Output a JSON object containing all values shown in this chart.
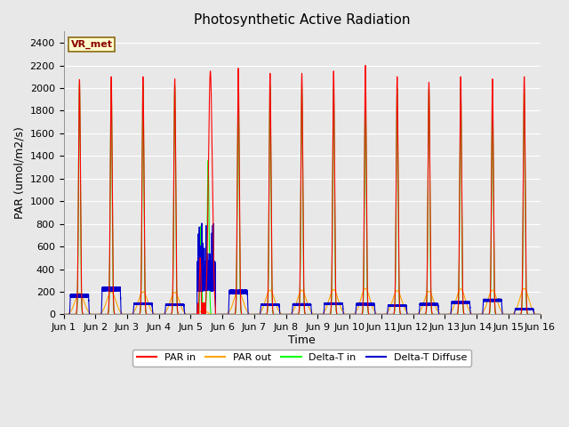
{
  "title": "Photosynthetic Active Radiation",
  "ylabel": "PAR (umol/m2/s)",
  "xlabel": "Time",
  "xlim": [
    0,
    15
  ],
  "ylim": [
    0,
    2500
  ],
  "yticks": [
    0,
    200,
    400,
    600,
    800,
    1000,
    1200,
    1400,
    1600,
    1800,
    2000,
    2200,
    2400
  ],
  "xtick_labels": [
    "Jun 1",
    "Jun 2",
    "Jun 3",
    "Jun 4",
    "Jun 5",
    "Jun 6",
    "Jun 7",
    "Jun 8",
    "Jun 9",
    "Jun 10",
    "Jun 11",
    "Jun 12",
    "Jun 13",
    "Jun 14",
    "Jun 15",
    "Jun 16"
  ],
  "xtick_positions": [
    0,
    1,
    2,
    3,
    4,
    5,
    6,
    7,
    8,
    9,
    10,
    11,
    12,
    13,
    14,
    15
  ],
  "annotation_text": "VR_met",
  "colors": {
    "PAR_in": "#ff0000",
    "PAR_out": "#ffa500",
    "Delta_T_in": "#00ff00",
    "Delta_T_Diffuse": "#0000cd"
  },
  "background_color": "#e8e8e8",
  "grid_color": "#ffffff",
  "title_fontsize": 11,
  "axis_label_fontsize": 9,
  "tick_fontsize": 8,
  "legend_labels": [
    "PAR in",
    "PAR out",
    "Delta-T in",
    "Delta-T Diffuse"
  ],
  "num_days": 15,
  "peak_PAR_in": [
    2075,
    2100,
    2100,
    2080,
    500,
    2175,
    2130,
    2130,
    2150,
    2200,
    2100,
    2050,
    2100,
    2080,
    2100
  ],
  "peak_PAR_in_cloudy2": 2150,
  "peak_PAR_out": [
    190,
    200,
    200,
    195,
    40,
    210,
    215,
    215,
    220,
    230,
    210,
    205,
    225,
    215,
    230
  ],
  "peak_Delta_T_in": [
    2040,
    2030,
    2030,
    2020,
    1360,
    2020,
    2020,
    2010,
    2010,
    2000,
    2000,
    2000,
    2000,
    1990,
    1980
  ],
  "peak_Delta_T_Diffuse_day": [
    165,
    225,
    95,
    85,
    340,
    200,
    85,
    88,
    95,
    90,
    78,
    90,
    105,
    125,
    48
  ],
  "cloudy_day": 4
}
